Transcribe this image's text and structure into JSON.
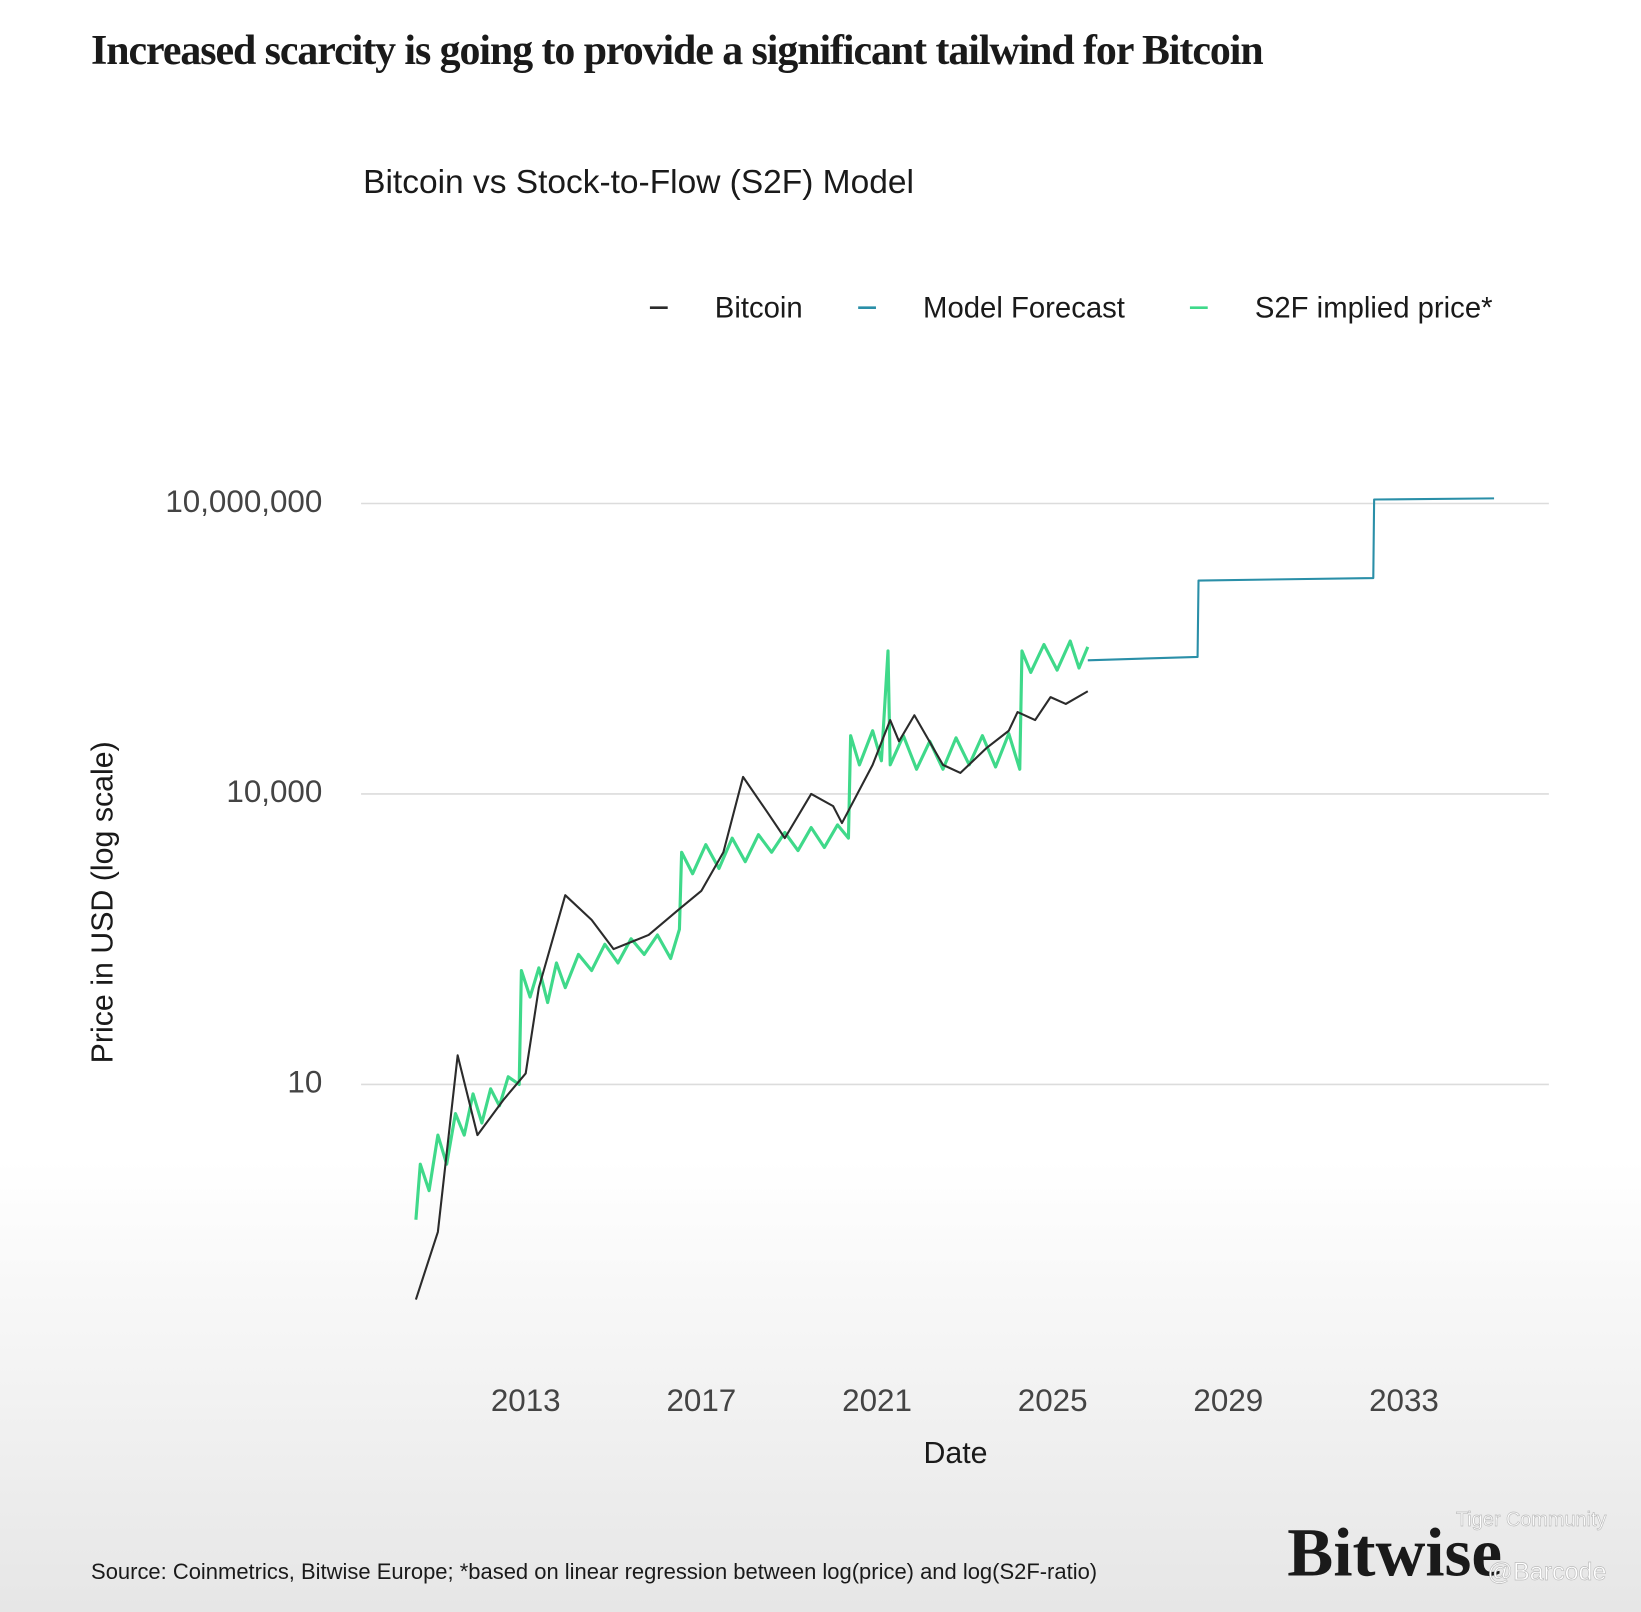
{
  "chart_data": {
    "type": "line",
    "title": "Increased scarcity is going to provide a significant tailwind for Bitcoin",
    "subtitle": "Bitcoin vs Stock-to-Flow (S2F) Model",
    "x_label": "Date",
    "y_label": "Price in USD (log scale)",
    "source": "Source: Coinmetrics, Bitwise Europe; *based on linear regression between log(price) and log(S2F-ratio)",
    "brand": "Bitwise",
    "watermark": [
      "Tiger Community",
      "@Barcode"
    ],
    "yscale": "log",
    "grid": true,
    "legend": "top-right",
    "xlim": [
      2009.25,
      2036.3
    ],
    "xticks": [
      2013,
      2017,
      2021,
      2025,
      2029,
      2033
    ],
    "ylim": [
      0.02,
      40000000
    ],
    "yticks": [
      10,
      {
        "value": 10000,
        "label": "10,000"
      },
      {
        "value": 10000000,
        "label": "10,000,000"
      }
    ],
    "series": [
      {
        "name": "Bitcoin",
        "color": "#2b2b2b",
        "x": [
          2010.5,
          2011.0,
          2011.45,
          2011.9,
          2012.5,
          2013.0,
          2013.3,
          2013.9,
          2014.5,
          2015.0,
          2015.8,
          2016.5,
          2017.0,
          2017.5,
          2017.95,
          2018.5,
          2018.9,
          2019.5,
          2020.0,
          2020.2,
          2020.9,
          2021.3,
          2021.5,
          2021.85,
          2022.5,
          2022.9,
          2023.5,
          2024.0,
          2024.2,
          2024.6,
          2024.95,
          2025.3,
          2025.8
        ],
        "values": [
          0.06,
          0.3,
          20,
          3,
          7,
          13,
          100,
          900,
          500,
          250,
          350,
          650,
          1000,
          2500,
          15000,
          6500,
          3500,
          10000,
          7500,
          5000,
          20000,
          58000,
          35000,
          65000,
          20000,
          16500,
          30000,
          45000,
          70000,
          58000,
          100000,
          85000,
          115000
        ]
      },
      {
        "name": "Model Forecast",
        "color": "#2a8fa8",
        "x": [
          2025.8,
          2028.3,
          2028.32,
          2032.3,
          2032.32,
          2035.05
        ],
        "values": [
          240000,
          260000,
          1600000,
          1700000,
          11000000,
          11300000
        ]
      },
      {
        "name": "S2F implied price*",
        "color": "#3fd98a",
        "x": [
          2010.5,
          2010.6,
          2010.8,
          2011.0,
          2011.2,
          2011.4,
          2011.6,
          2011.8,
          2012.0,
          2012.2,
          2012.4,
          2012.6,
          2012.85,
          2012.9,
          2013.1,
          2013.3,
          2013.5,
          2013.7,
          2013.9,
          2014.2,
          2014.5,
          2014.8,
          2015.1,
          2015.4,
          2015.7,
          2016.0,
          2016.3,
          2016.5,
          2016.55,
          2016.8,
          2017.1,
          2017.4,
          2017.7,
          2018.0,
          2018.3,
          2018.6,
          2018.9,
          2019.2,
          2019.5,
          2019.8,
          2020.1,
          2020.35,
          2020.4,
          2020.6,
          2020.9,
          2021.1,
          2021.25,
          2021.3,
          2021.6,
          2021.9,
          2022.2,
          2022.5,
          2022.8,
          2023.1,
          2023.4,
          2023.7,
          2024.0,
          2024.25,
          2024.3,
          2024.5,
          2024.8,
          2025.1,
          2025.4,
          2025.6,
          2025.8
        ],
        "values": [
          0.4,
          1.5,
          0.8,
          3,
          1.5,
          5,
          3,
          8,
          4,
          9,
          6,
          12,
          10,
          150,
          80,
          160,
          70,
          180,
          100,
          220,
          150,
          280,
          180,
          320,
          220,
          350,
          200,
          400,
          2500,
          1500,
          3000,
          1700,
          3500,
          2000,
          3800,
          2500,
          4000,
          2600,
          4500,
          2800,
          4800,
          3500,
          40000,
          20000,
          45000,
          22000,
          300000,
          20000,
          40000,
          18000,
          35000,
          18000,
          38000,
          20000,
          40000,
          19000,
          42000,
          18000,
          300000,
          180000,
          350000,
          190000,
          380000,
          200000,
          330000
        ]
      }
    ]
  }
}
